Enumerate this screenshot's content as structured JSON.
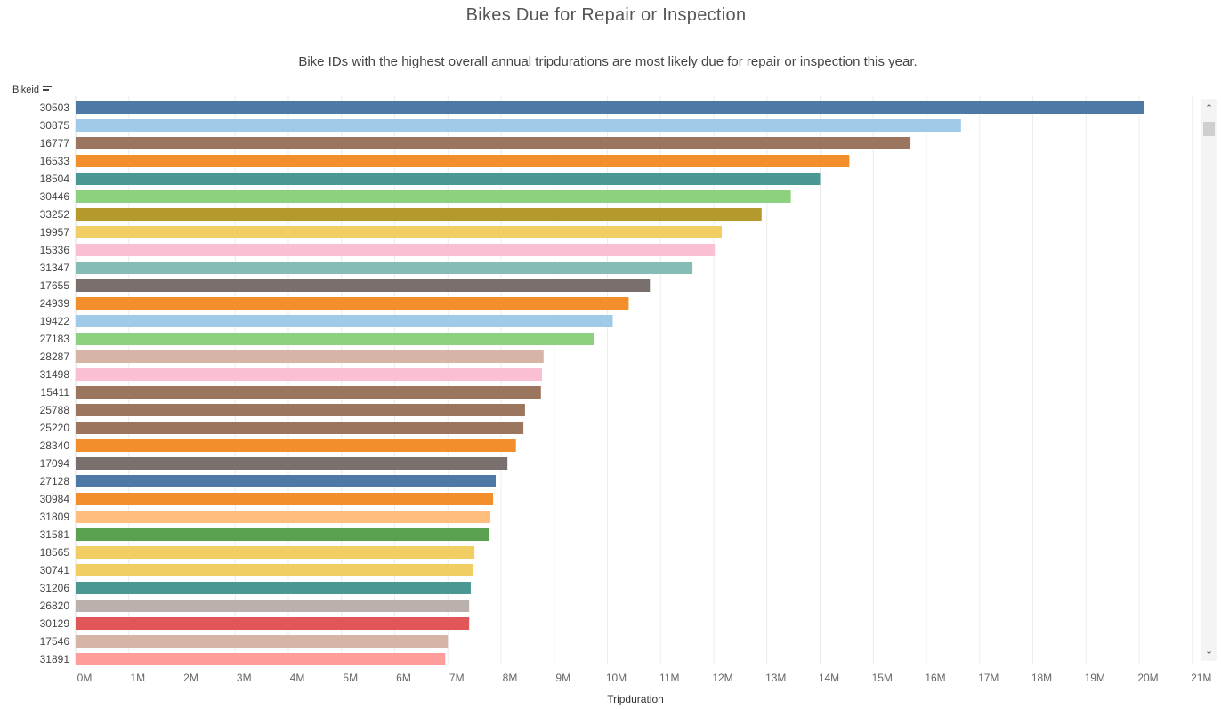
{
  "chart_data": {
    "type": "bar",
    "orientation": "horizontal",
    "title": "Bikes Due for Repair or Inspection",
    "subtitle": "Bike IDs with the highest overall annual tripdurations are most likely due for repair or inspection this year.",
    "ylabel": "Bikeid",
    "xlabel": "Tripduration",
    "xlim": [
      0,
      21
    ],
    "x_ticks": [
      "0M",
      "1M",
      "2M",
      "3M",
      "4M",
      "5M",
      "6M",
      "7M",
      "8M",
      "9M",
      "10M",
      "11M",
      "12M",
      "13M",
      "14M",
      "15M",
      "16M",
      "17M",
      "18M",
      "19M",
      "20M",
      "21M"
    ],
    "grid": true,
    "sorted": "descending",
    "categories": [
      "30503",
      "30875",
      "16777",
      "16533",
      "18504",
      "30446",
      "33252",
      "19957",
      "15336",
      "31347",
      "17655",
      "24939",
      "19422",
      "27183",
      "28287",
      "31498",
      "15411",
      "25788",
      "25220",
      "28340",
      "17094",
      "27128",
      "30984",
      "31809",
      "31581",
      "18565",
      "30741",
      "31206",
      "26820",
      "30129",
      "17546",
      "31891"
    ],
    "values": [
      20.1,
      16.65,
      15.7,
      14.55,
      14.0,
      13.45,
      12.9,
      12.15,
      12.02,
      11.6,
      10.8,
      10.4,
      10.1,
      9.75,
      8.8,
      8.77,
      8.75,
      8.45,
      8.42,
      8.28,
      8.12,
      7.9,
      7.85,
      7.8,
      7.78,
      7.5,
      7.47,
      7.43,
      7.4,
      7.4,
      7.0,
      6.95
    ],
    "colors": [
      "#4e79a7",
      "#a0cbe8",
      "#9c755f",
      "#f28e2b",
      "#499894",
      "#8cd17d",
      "#b6992d",
      "#f1ce63",
      "#fabfd2",
      "#86bcb6",
      "#79706e",
      "#f28e2b",
      "#a0cbe8",
      "#8cd17d",
      "#d7b5a6",
      "#fabfd2",
      "#9c755f",
      "#9c755f",
      "#9c755f",
      "#f28e2b",
      "#79706e",
      "#4e79a7",
      "#f28e2b",
      "#ffbe7d",
      "#59a14f",
      "#f1ce63",
      "#f1ce63",
      "#499894",
      "#bab0ac",
      "#e15759",
      "#d7b5a6",
      "#ff9d9a"
    ]
  }
}
